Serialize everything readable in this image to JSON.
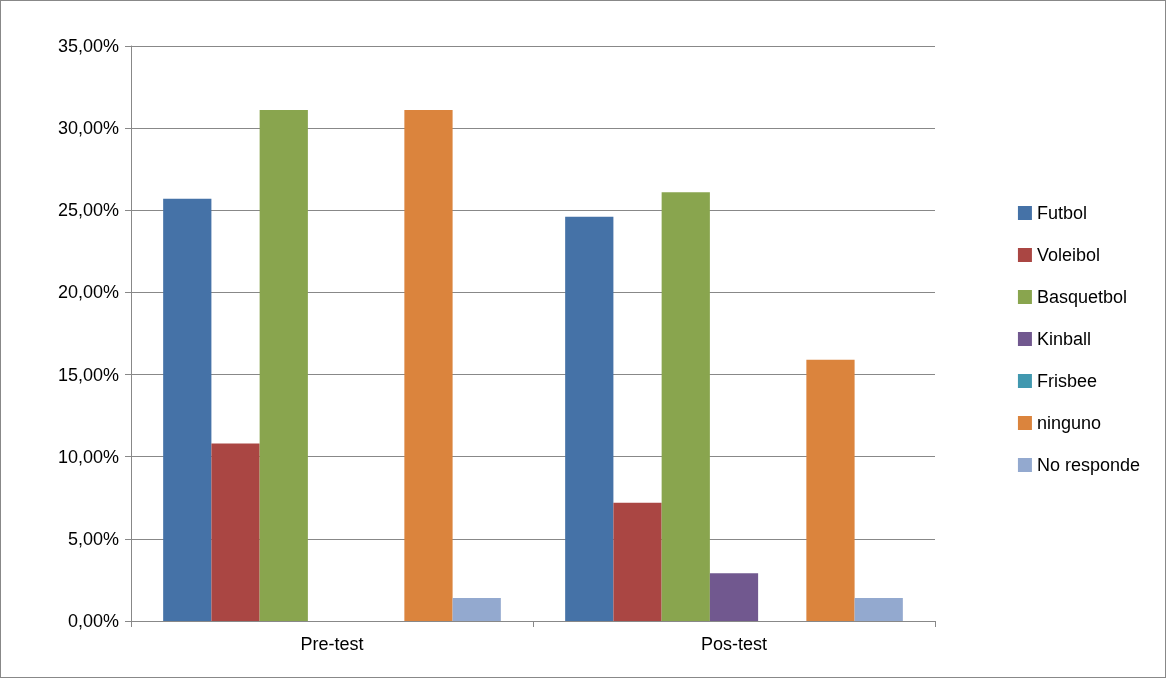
{
  "chart_data": {
    "type": "bar",
    "categories": [
      "Pre-test",
      "Pos-test"
    ],
    "series": [
      {
        "name": "Futbol",
        "color": "#4572a7",
        "values": [
          25.7,
          24.6
        ]
      },
      {
        "name": "Voleibol",
        "color": "#aa4643",
        "values": [
          10.8,
          7.2
        ]
      },
      {
        "name": "Basquetbol",
        "color": "#89a54e",
        "values": [
          31.1,
          26.1
        ]
      },
      {
        "name": "Kinball",
        "color": "#71588f",
        "values": [
          0,
          2.9
        ]
      },
      {
        "name": "Frisbee",
        "color": "#4198af",
        "values": [
          0,
          0
        ]
      },
      {
        "name": "ninguno",
        "color": "#db843d",
        "values": [
          31.1,
          15.9
        ]
      },
      {
        "name": "No responde",
        "color": "#93a9cf",
        "values": [
          1.4,
          1.4
        ]
      }
    ],
    "ylim": [
      0,
      35
    ],
    "yticks": [
      {
        "value": 0,
        "label": "0,00%"
      },
      {
        "value": 5,
        "label": "5,00%"
      },
      {
        "value": 10,
        "label": "10,00%"
      },
      {
        "value": 15,
        "label": "15,00%"
      },
      {
        "value": 20,
        "label": "20,00%"
      },
      {
        "value": 25,
        "label": "25,00%"
      },
      {
        "value": 30,
        "label": "30,00%"
      },
      {
        "value": 35,
        "label": "35,00%"
      }
    ],
    "grid": "y",
    "legend": "right"
  }
}
